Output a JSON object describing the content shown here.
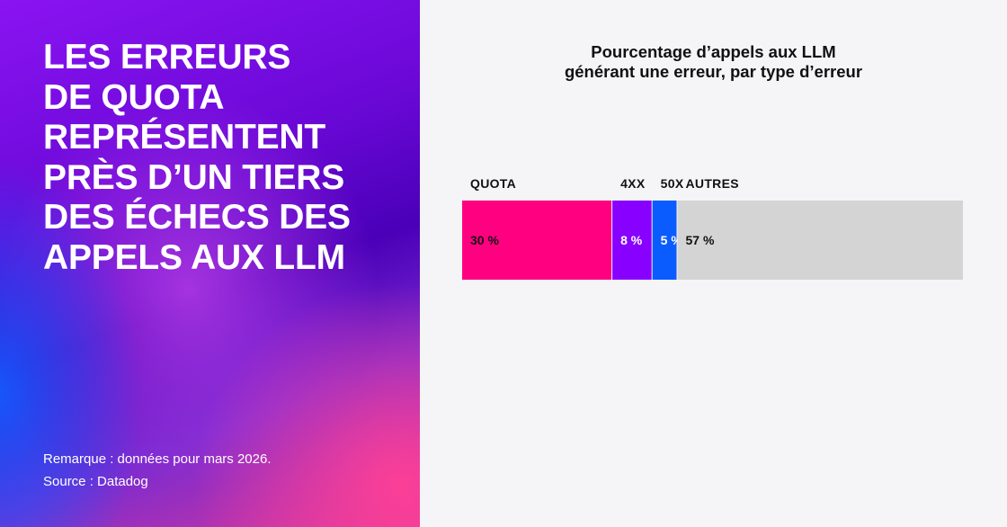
{
  "headline": [
    "LES ERREURS",
    "DE QUOTA",
    "REPRÉSENTENT",
    "PRÈS D’UN TIERS",
    "DES ÉCHECS DES",
    "APPELS AUX LLM"
  ],
  "notes": {
    "remark": "Remarque : données pour mars 2026.",
    "source": "Source : Datadog"
  },
  "colors": {
    "quota": "#ff0080",
    "4xx": "#8800ff",
    "50x": "#0b5cff",
    "autres": "#d4d4d4"
  },
  "chart_data": {
    "type": "bar",
    "orientation": "horizontal-stacked",
    "title": [
      "Pourcentage d’appels aux LLM",
      "générant une erreur, par type d’erreur"
    ],
    "categories": [
      "QUOTA",
      "4XX",
      "50X",
      "AUTRES"
    ],
    "values": [
      30,
      8,
      5,
      57
    ],
    "value_labels": [
      "30 %",
      "8 %",
      "5 %",
      "57 %"
    ],
    "colors": [
      "#ff0080",
      "#8800ff",
      "#0b5cff",
      "#d4d4d4"
    ],
    "label_colors": [
      "#111111",
      "#ffffff",
      "#ffffff",
      "#111111"
    ],
    "total": 100,
    "grid": false,
    "legend": "labels above segments"
  }
}
